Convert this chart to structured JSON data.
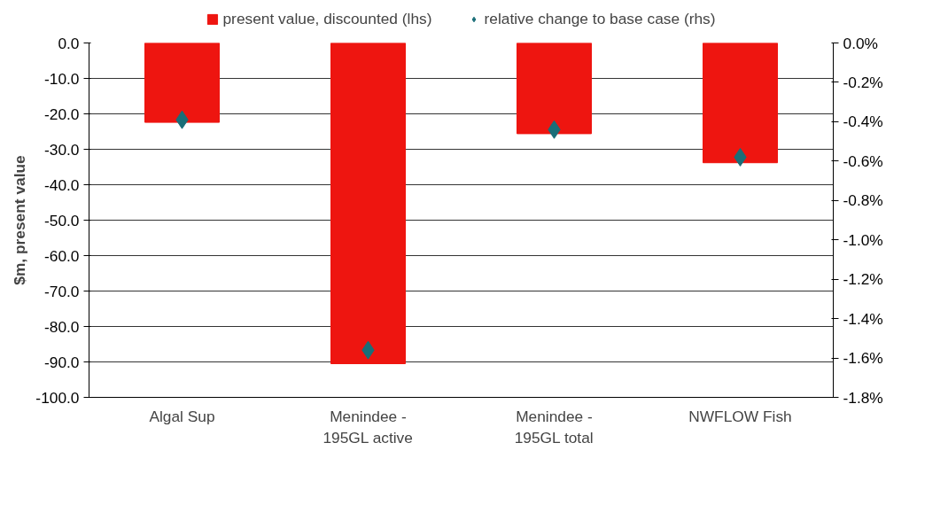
{
  "chart_data": {
    "type": "bar",
    "ylabel": "$m, present value",
    "categories": [
      "Algal Sup",
      "Menindee -\n195GL active",
      "Menindee -\n195GL total",
      "NWFLOW Fish"
    ],
    "series": [
      {
        "name": "present value, discounted (lhs)",
        "color": "#ee1510",
        "values": [
          -22.4,
          -90.5,
          -25.6,
          -33.8
        ]
      },
      {
        "name": "relative change to base case (rhs)",
        "type": "scatter",
        "axis": "y2",
        "marker": "diamond",
        "color": "#1a6e78",
        "values": [
          -0.39,
          -1.56,
          -0.44,
          -0.58
        ]
      }
    ],
    "ylim": [
      -100,
      0
    ],
    "yticks": [
      {
        "value": 0,
        "label": "0.0"
      },
      {
        "value": -10,
        "label": "-10.0"
      },
      {
        "value": -20,
        "label": "-20.0"
      },
      {
        "value": -30,
        "label": "-30.0"
      },
      {
        "value": -40,
        "label": "-40.0"
      },
      {
        "value": -50,
        "label": "-50.0"
      },
      {
        "value": -60,
        "label": "-60.0"
      },
      {
        "value": -70,
        "label": "-70.0"
      },
      {
        "value": -80,
        "label": "-80.0"
      },
      {
        "value": -90,
        "label": "-90.0"
      },
      {
        "value": -100,
        "label": "-100.0"
      }
    ],
    "y2lim": [
      -1.8,
      0
    ],
    "y2ticks": [
      {
        "value": 0,
        "label": "0.0%"
      },
      {
        "value": -0.2,
        "label": "-0.2%"
      },
      {
        "value": -0.4,
        "label": "-0.4%"
      },
      {
        "value": -0.6,
        "label": "-0.6%"
      },
      {
        "value": -0.8,
        "label": "-0.8%"
      },
      {
        "value": -1.0,
        "label": "-1.0%"
      },
      {
        "value": -1.2,
        "label": "-1.2%"
      },
      {
        "value": -1.4,
        "label": "-1.4%"
      },
      {
        "value": -1.6,
        "label": "-1.6%"
      },
      {
        "value": -1.8,
        "label": "-1.8%"
      }
    ],
    "grid": "y",
    "legend": "top"
  }
}
